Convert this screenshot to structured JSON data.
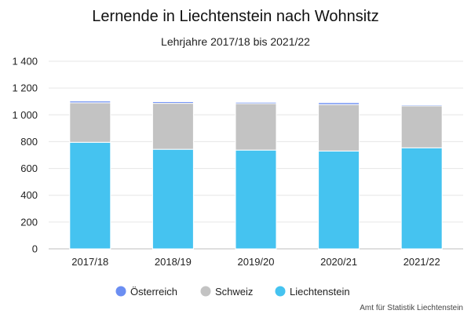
{
  "chart_data": {
    "type": "bar",
    "stacked": true,
    "title": "Lernende in Liechtenstein nach Wohnsitz",
    "subtitle": "Lehrjahre 2017/18 bis 2021/22",
    "categories": [
      "2017/18",
      "2018/19",
      "2019/20",
      "2020/21",
      "2021/22"
    ],
    "series": [
      {
        "name": "Liechtenstein",
        "color": "#45c3f0",
        "values": [
          795,
          743,
          737,
          730,
          754
        ]
      },
      {
        "name": "Schweiz",
        "color": "#c3c3c3",
        "values": [
          295,
          343,
          347,
          347,
          313
        ]
      },
      {
        "name": "Österreich",
        "color": "#6b8ef2",
        "values": [
          13,
          12,
          10,
          14,
          8
        ]
      }
    ],
    "ylim": [
      0,
      1400
    ],
    "yticks": [
      0,
      200,
      400,
      600,
      800,
      1000,
      1200,
      1400
    ],
    "ytick_labels": [
      "0",
      "200",
      "400",
      "600",
      "800",
      "1 000",
      "1 200",
      "1 400"
    ],
    "grid": true,
    "legend_position": "bottom",
    "legend_order": [
      "Österreich",
      "Schweiz",
      "Liechtenstein"
    ],
    "credit": "Amt für Statistik Liechtenstein"
  }
}
